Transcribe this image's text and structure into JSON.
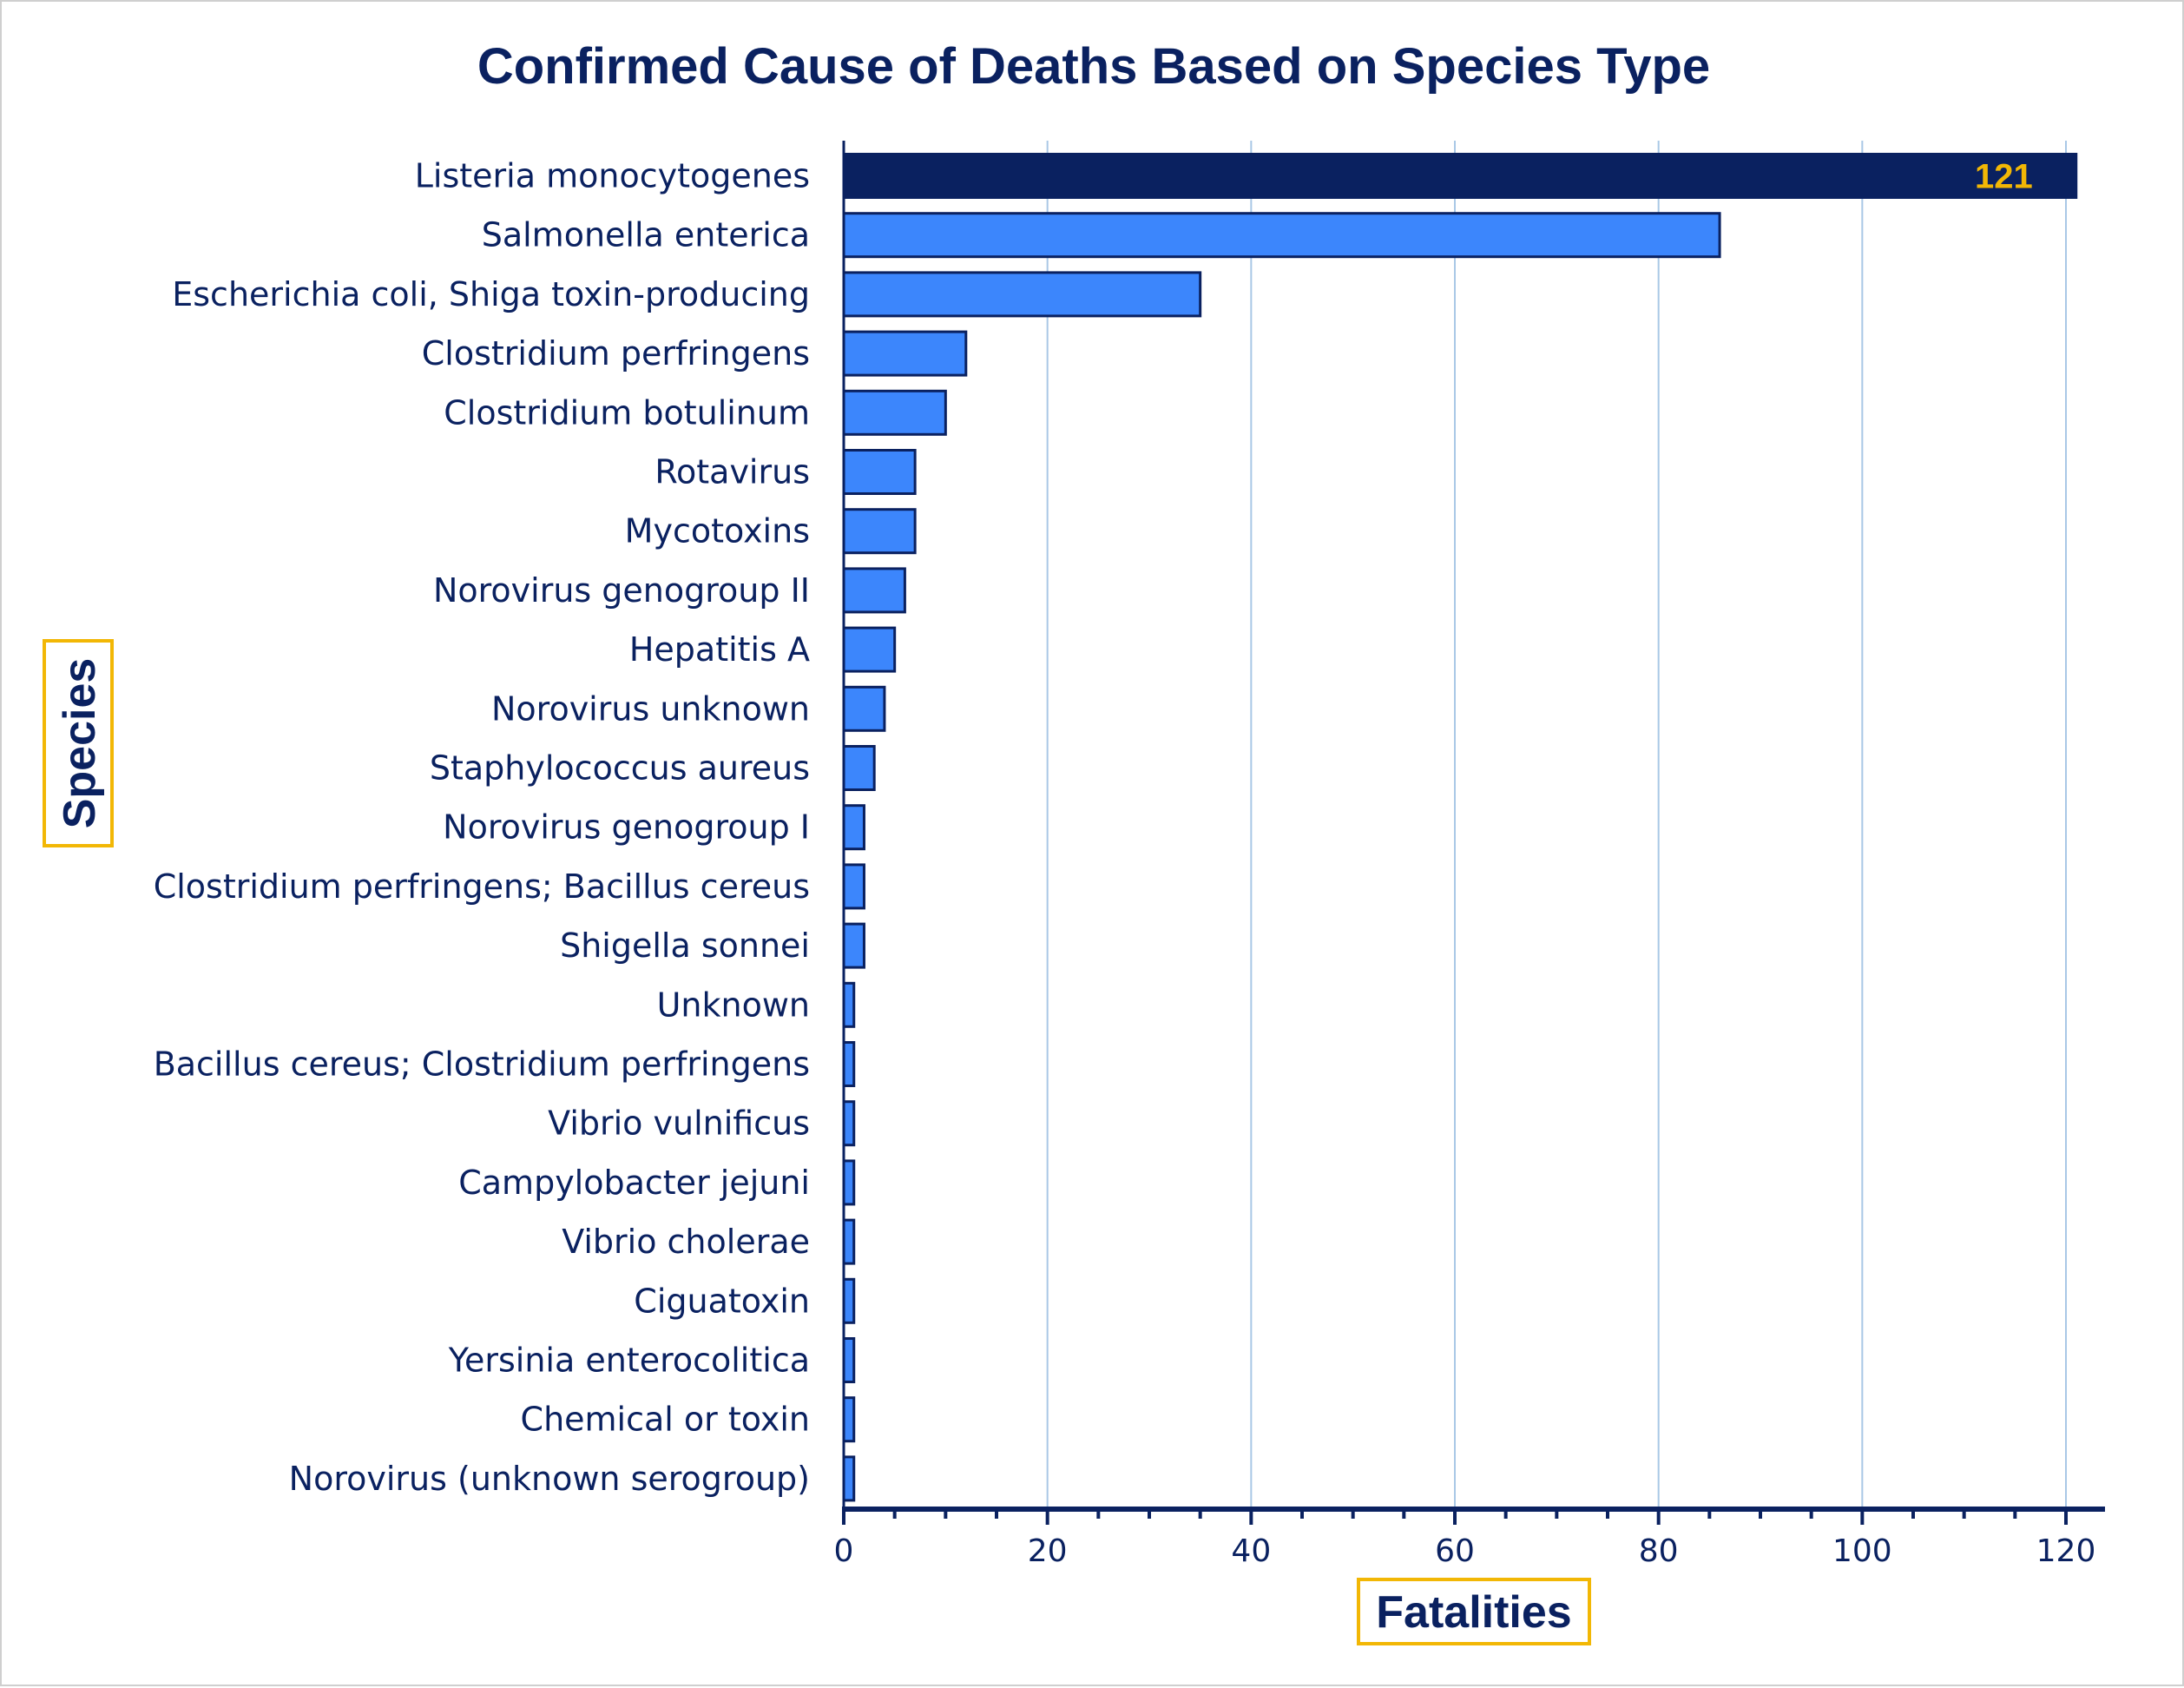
{
  "chart_data": {
    "type": "bar",
    "orientation": "horizontal",
    "title": "Confirmed Cause of Deaths Based on Species Type",
    "xlabel": "Fatalities",
    "ylabel": "Species",
    "xlim": [
      0,
      124
    ],
    "xticks": [
      0,
      20,
      40,
      60,
      80,
      100,
      120
    ],
    "grid": true,
    "categories": [
      "Listeria monocytogenes",
      "Salmonella enterica",
      "Escherichia coli, Shiga toxin-producing",
      "Clostridium perfringens",
      "Clostridium botulinum",
      "Rotavirus",
      "Mycotoxins",
      "Norovirus genogroup II",
      "Hepatitis A",
      "Norovirus unknown",
      "Staphylococcus aureus",
      "Norovirus genogroup I",
      "Clostridium perfringens; Bacillus cereus",
      "Shigella sonnei",
      "Unknown",
      "Bacillus cereus; Clostridium perfringens",
      "Vibrio vulnificus",
      "Campylobacter jejuni",
      "Vibrio cholerae",
      "Ciguatoxin",
      "Yersinia enterocolitica",
      "Chemical or toxin",
      "Norovirus (unknown serogroup)"
    ],
    "values": [
      121,
      86,
      35,
      12,
      10,
      7,
      7,
      6,
      5,
      4,
      3,
      2,
      2,
      2,
      1,
      1,
      1,
      1,
      1,
      1,
      1,
      1,
      1
    ],
    "data_labels": [
      {
        "category": "Listeria monocytogenes",
        "text": "121"
      }
    ],
    "colors": {
      "bar": "#3c86fc",
      "highlight_bar": "#0a2160",
      "bar_border": "#0a2160",
      "text": "#0a2160",
      "grid": "#a9c8e6",
      "label_box_border": "#f2b705",
      "data_label": "#f2b705"
    }
  }
}
